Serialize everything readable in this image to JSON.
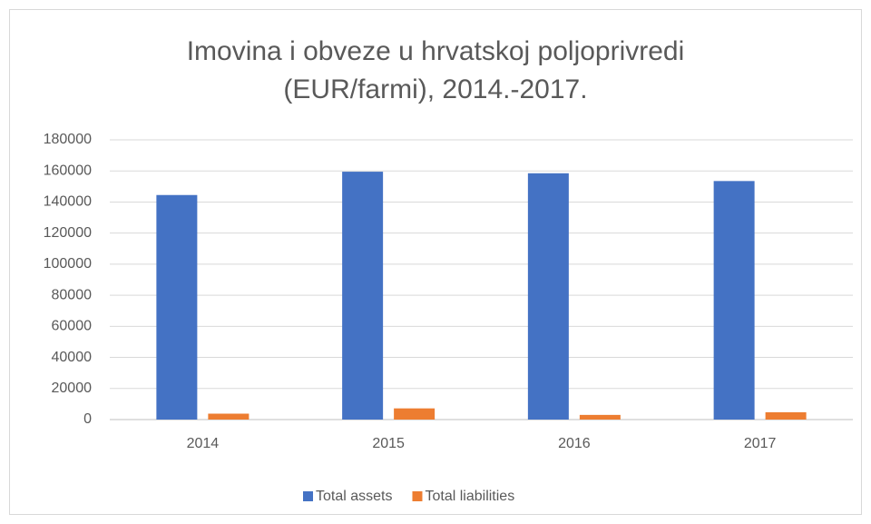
{
  "chart_data": {
    "type": "bar",
    "title": "Imovina i obveze u hrvatskoj poljoprivredi (EUR/farmi), 2014.-2017.",
    "categories": [
      "2014",
      "2015",
      "2016",
      "2017"
    ],
    "series": [
      {
        "name": "Total assets",
        "color": "#4472c4",
        "values": [
          144500,
          159500,
          158500,
          153500
        ]
      },
      {
        "name": "Total liabilities",
        "color": "#ed7d31",
        "values": [
          3800,
          7200,
          3000,
          4700
        ]
      }
    ],
    "ylim": [
      0,
      180000
    ],
    "yticks": [
      0,
      20000,
      40000,
      60000,
      80000,
      100000,
      120000,
      140000,
      160000,
      180000
    ],
    "grid": true,
    "legend": "bottom"
  }
}
